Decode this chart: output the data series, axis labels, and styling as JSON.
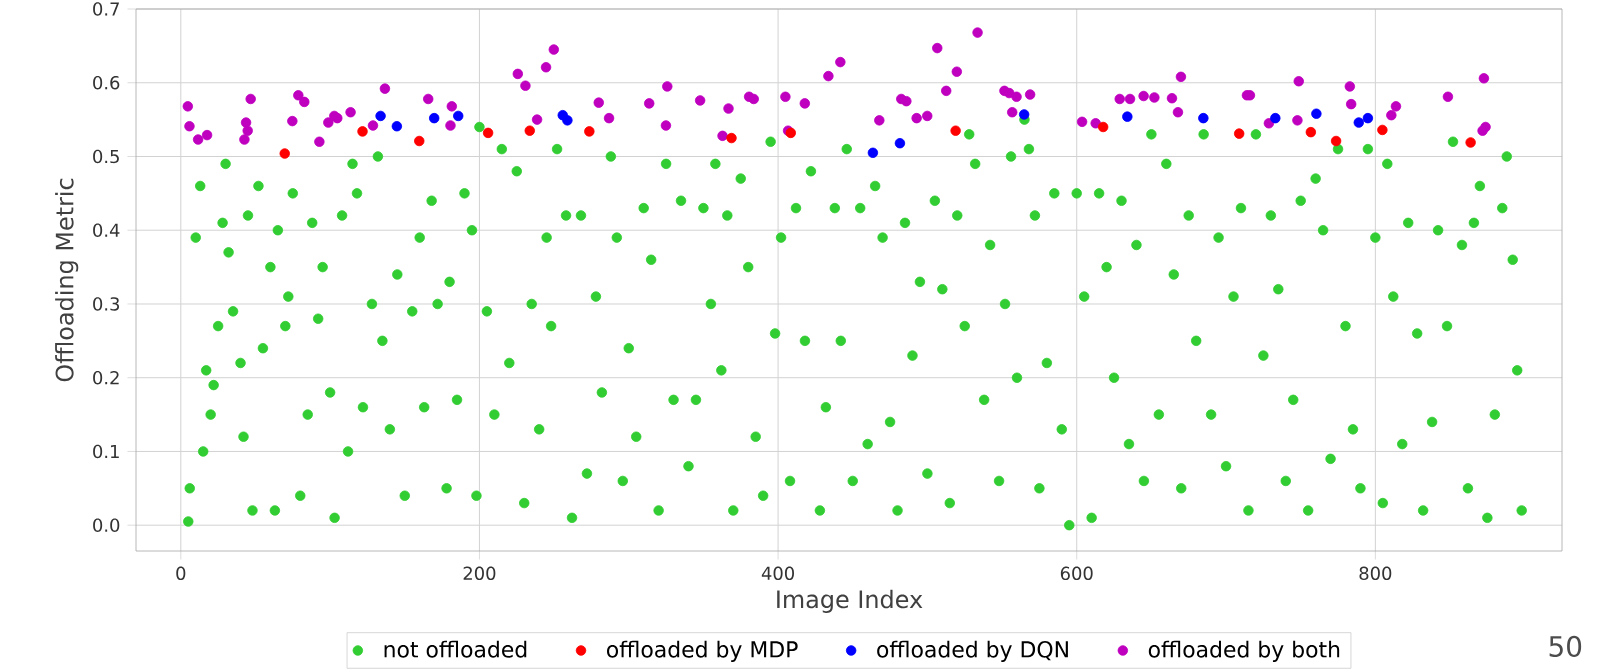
{
  "chart_data": {
    "type": "scatter",
    "xlabel": "Image Index",
    "ylabel": "Offloading Metric",
    "xlim": [
      -30,
      925
    ],
    "ylim": [
      -0.035,
      0.7
    ],
    "xticks": [
      0,
      200,
      400,
      600,
      800
    ],
    "yticks": [
      {
        "value": 0,
        "label": "0.0"
      },
      0.1,
      0.2,
      0.3,
      0.4,
      0.5,
      0.6,
      0.7
    ],
    "grid": true,
    "legend": "bottom",
    "marker": "circle",
    "annotations": [
      "50"
    ],
    "series": [
      {
        "name": "not offloaded",
        "color": "#32cd32",
        "x": [
          5,
          6,
          10,
          13,
          15,
          17,
          20,
          22,
          25,
          28,
          30,
          32,
          35,
          40,
          42,
          45,
          48,
          52,
          55,
          60,
          63,
          65,
          70,
          72,
          75,
          80,
          85,
          88,
          92,
          95,
          100,
          103,
          108,
          112,
          115,
          118,
          122,
          128,
          132,
          135,
          140,
          145,
          150,
          155,
          160,
          163,
          168,
          172,
          178,
          180,
          185,
          190,
          195,
          198,
          200,
          205,
          210,
          215,
          220,
          225,
          230,
          235,
          240,
          245,
          248,
          252,
          258,
          262,
          268,
          272,
          278,
          282,
          288,
          292,
          296,
          300,
          305,
          310,
          315,
          320,
          325,
          330,
          335,
          340,
          345,
          350,
          355,
          358,
          362,
          366,
          370,
          375,
          380,
          385,
          390,
          395,
          398,
          402,
          408,
          412,
          418,
          422,
          428,
          432,
          438,
          442,
          446,
          450,
          455,
          460,
          465,
          470,
          475,
          480,
          485,
          490,
          495,
          500,
          505,
          510,
          515,
          520,
          525,
          528,
          532,
          538,
          542,
          548,
          552,
          556,
          560,
          565,
          568,
          572,
          575,
          580,
          585,
          590,
          595,
          600,
          605,
          610,
          615,
          620,
          625,
          630,
          635,
          640,
          645,
          650,
          655,
          660,
          665,
          670,
          675,
          680,
          685,
          690,
          695,
          700,
          705,
          710,
          715,
          720,
          725,
          730,
          735,
          740,
          745,
          750,
          755,
          760,
          765,
          770,
          775,
          780,
          785,
          790,
          795,
          800,
          805,
          808,
          812,
          818,
          822,
          828,
          832,
          838,
          842,
          848,
          852,
          858,
          862,
          866,
          870,
          875,
          880,
          885,
          888,
          892,
          895,
          898
        ],
        "values": [
          0.005,
          0.05,
          0.39,
          0.46,
          0.1,
          0.21,
          0.15,
          0.19,
          0.27,
          0.41,
          0.49,
          0.37,
          0.29,
          0.22,
          0.12,
          0.42,
          0.02,
          0.46,
          0.24,
          0.35,
          0.02,
          0.4,
          0.27,
          0.31,
          0.45,
          0.04,
          0.15,
          0.41,
          0.28,
          0.35,
          0.18,
          0.01,
          0.42,
          0.1,
          0.49,
          0.45,
          0.16,
          0.3,
          0.5,
          0.25,
          0.13,
          0.34,
          0.04,
          0.29,
          0.39,
          0.16,
          0.44,
          0.3,
          0.05,
          0.33,
          0.17,
          0.45,
          0.4,
          0.04,
          0.54,
          0.29,
          0.15,
          0.51,
          0.22,
          0.48,
          0.03,
          0.3,
          0.13,
          0.39,
          0.27,
          0.51,
          0.42,
          0.01,
          0.42,
          0.07,
          0.31,
          0.18,
          0.5,
          0.39,
          0.06,
          0.24,
          0.12,
          0.43,
          0.36,
          0.02,
          0.49,
          0.17,
          0.44,
          0.08,
          0.17,
          0.43,
          0.3,
          0.49,
          0.21,
          0.42,
          0.02,
          0.47,
          0.35,
          0.12,
          0.04,
          0.52,
          0.26,
          0.39,
          0.06,
          0.43,
          0.25,
          0.48,
          0.02,
          0.16,
          0.43,
          0.25,
          0.51,
          0.06,
          0.43,
          0.11,
          0.46,
          0.39,
          0.14,
          0.02,
          0.41,
          0.23,
          0.33,
          0.07,
          0.44,
          0.32,
          0.03,
          0.42,
          0.27,
          0.53,
          0.49,
          0.17,
          0.38,
          0.06,
          0.3,
          0.5,
          0.2,
          0.55,
          0.51,
          0.42,
          0.05,
          0.22,
          0.45,
          0.13,
          0.0,
          0.45,
          0.31,
          0.01,
          0.45,
          0.35,
          0.2,
          0.44,
          0.11,
          0.38,
          0.06,
          0.53,
          0.15,
          0.49,
          0.34,
          0.05,
          0.42,
          0.25,
          0.53,
          0.15,
          0.39,
          0.08,
          0.31,
          0.43,
          0.02,
          0.53,
          0.23,
          0.42,
          0.32,
          0.06,
          0.17,
          0.44,
          0.02,
          0.47,
          0.4,
          0.09,
          0.51,
          0.27,
          0.13,
          0.05,
          0.51,
          0.39,
          0.03,
          0.49,
          0.31,
          0.11,
          0.41,
          0.26,
          0.02,
          0.14,
          0.4,
          0.27,
          0.52,
          0.38,
          0.05,
          0.41,
          0.46,
          0.01,
          0.15,
          0.43,
          0.5,
          0.36,
          0.21,
          0.02
        ]
      },
      {
        "name": "offloaded by MDP",
        "color": "#ff0000",
        "x": [
          69.6,
          121.7,
          157.4,
          159.7,
          205.8,
          233.7,
          273.6,
          368.8,
          408.5,
          518.9,
          617.7,
          708.8,
          756.8,
          773.7,
          804.7,
          863.8
        ],
        "values": [
          0.504,
          0.534,
          null,
          0.521,
          0.532,
          0.535,
          0.534,
          0.525,
          0.532,
          0.535,
          0.54,
          0.531,
          0.533,
          0.521,
          0.536,
          0.519
        ]
      },
      {
        "name": "offloaded by DQN",
        "color": "#0000ff",
        "x": [
          133.8,
          144.7,
          169.7,
          185.8,
          255.8,
          258.9,
          463.5,
          481.6,
          564.8,
          633.9,
          684.8,
          733,
          760.5,
          788.9,
          795
        ],
        "values": [
          0.555,
          0.541,
          0.552,
          0.555,
          0.556,
          0.549,
          0.505,
          0.518,
          0.557,
          0.554,
          0.552,
          0.552,
          0.558,
          0.546,
          0.552
        ]
      },
      {
        "name": "offloaded by both",
        "color": "#bf00bf",
        "x": [
          4.7,
          5.8,
          11.6,
          17.6,
          42.6,
          43.7,
          44.8,
          46.8,
          74.7,
          78.7,
          82.7,
          92.8,
          98.8,
          102.8,
          104.8,
          113.7,
          128.7,
          136.7,
          165.7,
          181.5,
          180.6,
          225.7,
          230.8,
          244.6,
          249.8,
          238.6,
          279.9,
          286.8,
          313.7,
          325.8,
          324.9,
          347.8,
          366.8,
          362.8,
          380.6,
          383.7,
          404.9,
          406.7,
          417.9,
          433.7,
          441.7,
          467.8,
          482.5,
          485.9,
          492.8,
          499.9,
          506.6,
          519.7,
          512.6,
          533.6,
          551.6,
          554.8,
          559.7,
          568.8,
          556.8,
          603.6,
          612.7,
          628.8,
          635.7,
          644.8,
          652,
          663.8,
          669.8,
          667.8,
          714,
          716,
          728.7,
          747.8,
          748.7,
          782.9,
          783.8,
          813.8,
          810.7,
          848.6,
          872.7,
          873.8,
          871.8
        ],
        "values": [
          0.568,
          0.541,
          0.523,
          0.529,
          0.523,
          0.546,
          0.535,
          0.578,
          0.548,
          0.583,
          0.574,
          0.52,
          0.546,
          0.555,
          0.552,
          0.56,
          0.542,
          0.592,
          0.578,
          0.568,
          0.542,
          0.612,
          0.596,
          0.621,
          0.645,
          0.55,
          0.573,
          0.552,
          0.572,
          0.595,
          0.542,
          0.576,
          0.565,
          0.528,
          0.581,
          0.578,
          0.581,
          0.535,
          0.572,
          0.609,
          0.628,
          0.549,
          0.578,
          0.575,
          0.552,
          0.555,
          0.647,
          0.615,
          0.589,
          0.668,
          0.589,
          0.586,
          0.581,
          0.584,
          0.56,
          0.547,
          0.545,
          0.578,
          0.578,
          0.582,
          0.58,
          0.579,
          0.608,
          0.56,
          0.583,
          0.583,
          0.545,
          0.549,
          0.602,
          0.595,
          0.571,
          0.568,
          0.556,
          0.581,
          0.606,
          0.54,
          0.535
        ]
      }
    ]
  }
}
